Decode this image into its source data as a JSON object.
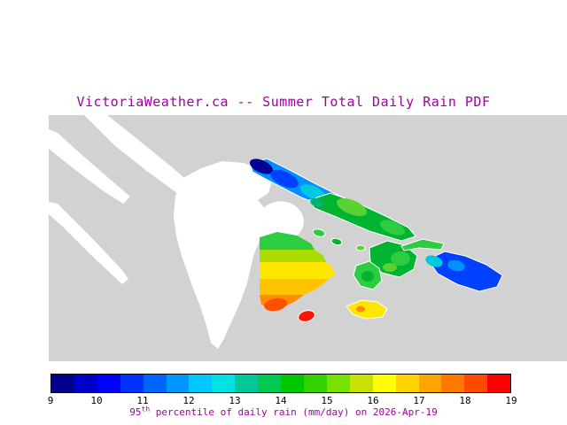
{
  "title": "VictoriaWeather.ca -- Summer Total Daily Rain PDF",
  "caption": {
    "prefix": "95",
    "superscript": "th",
    "suffix": " percentile of daily rain (mm/day) on 2026-Apr-19"
  },
  "theme": {
    "title_color": "#a000a0",
    "caption_color": "#a000a0",
    "tick_color": "#000000"
  },
  "colorbar": {
    "min": 9,
    "max": 19,
    "units": "mm/day",
    "ticks": [
      "9",
      "10",
      "11",
      "12",
      "13",
      "14",
      "15",
      "16",
      "17",
      "18",
      "19"
    ],
    "segments": [
      "#00008c",
      "#0000c8",
      "#0000ff",
      "#0032ff",
      "#0064ff",
      "#0096ff",
      "#00c8ff",
      "#00e1e1",
      "#00c896",
      "#00c850",
      "#00c800",
      "#32d200",
      "#78e100",
      "#c8e100",
      "#ffff00",
      "#ffd200",
      "#ffa500",
      "#ff7800",
      "#ff4b00",
      "#ff0000"
    ]
  },
  "map_colors": {
    "water": "#d2d2d2",
    "land": "#ffffff",
    "navy": "#000099",
    "blue": "#0040ff",
    "skyblue": "#0090ff",
    "cyan": "#00c8e0",
    "teal": "#00b070",
    "green": "#00b432",
    "green2": "#2ecc40",
    "brightgreen": "#5ad232",
    "yellowgreen": "#aadc00",
    "yellow": "#ffe600",
    "gold": "#ffc300",
    "orange": "#ff8c00",
    "orangered": "#ff5000",
    "red": "#ff1400"
  },
  "chart_data": {
    "type": "heatmap",
    "title": "VictoriaWeather.ca -- Summer Total Daily Rain PDF",
    "variable": "95th percentile of daily rain (mm/day)",
    "date": "2026-Apr-19",
    "scale": {
      "min": 9,
      "max": 19,
      "tick_values": [
        9,
        10,
        11,
        12,
        13,
        14,
        15,
        16,
        17,
        18,
        19
      ],
      "units": "mm/day",
      "colormap": "rainbow",
      "legend_position": "bottom"
    },
    "regions": [
      {
        "name": "northwest elongated island",
        "approx_value_mm_day": "9-13 (navy to cyan)"
      },
      {
        "name": "central island chain",
        "approx_value_mm_day": "13-15 (greens)"
      },
      {
        "name": "mid-east island cluster",
        "approx_value_mm_day": "13-15 (greens)"
      },
      {
        "name": "far-east island",
        "approx_value_mm_day": "10-12 (blue)"
      },
      {
        "name": "central-south island data band",
        "approx_value_mm_day": "14-18 (green to orange, north to south)"
      },
      {
        "name": "small southern islet",
        "approx_value_mm_day": "18-19 (red)"
      },
      {
        "name": "southeast islet",
        "approx_value_mm_day": "15-16 (yellow)"
      }
    ]
  }
}
